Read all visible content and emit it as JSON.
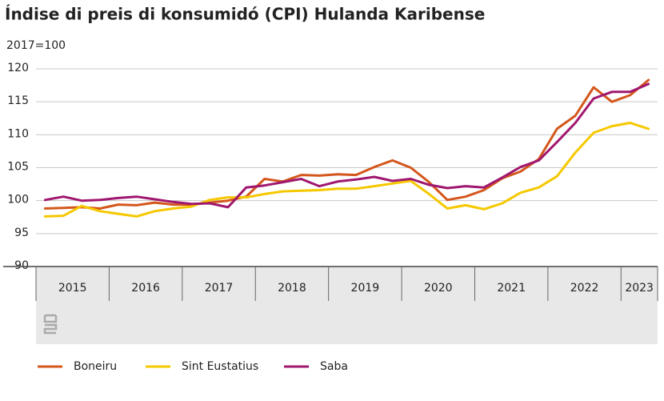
{
  "chart_data": {
    "type": "line",
    "title": "Índise di preis di konsumidó (CPI) Hulanda Karibense",
    "subtitle": "2017=100",
    "categories": [
      "2015",
      "2015",
      "2015",
      "2015",
      "2016",
      "2016",
      "2016",
      "2016",
      "2017",
      "2017",
      "2017",
      "2017",
      "2018",
      "2018",
      "2018",
      "2018",
      "2019",
      "2019",
      "2019",
      "2019",
      "2020",
      "2020",
      "2020",
      "2020",
      "2021",
      "2021",
      "2021",
      "2021",
      "2022",
      "2022",
      "2022",
      "2022",
      "2023",
      "2023"
    ],
    "series": [
      {
        "name": "Boneiru",
        "color": "#d4571c",
        "values": [
          98.8,
          98.9,
          99.0,
          98.8,
          99.4,
          99.3,
          99.7,
          99.4,
          99.4,
          99.7,
          100.0,
          100.6,
          103.3,
          102.9,
          103.9,
          103.8,
          104.0,
          103.9,
          105.1,
          106.1,
          105.0,
          102.8,
          100.1,
          100.6,
          101.6,
          103.4,
          104.4,
          106.3,
          110.9,
          112.9,
          117.2,
          115.0,
          116.0,
          118.3
        ]
      },
      {
        "name": "Sint Eustatius",
        "color": "#f5c800",
        "values": [
          97.6,
          97.7,
          99.2,
          98.4,
          98.0,
          97.6,
          98.4,
          98.8,
          99.1,
          100.1,
          100.5,
          100.5,
          101.0,
          101.4,
          101.5,
          101.6,
          101.8,
          101.8,
          102.2,
          102.6,
          103.0,
          101.0,
          98.8,
          99.3,
          98.7,
          99.6,
          101.2,
          102.0,
          103.7,
          107.3,
          110.3,
          111.3,
          111.8,
          110.9
        ]
      },
      {
        "name": "Saba",
        "color": "#a0176f",
        "values": [
          100.1,
          100.6,
          100.0,
          100.1,
          100.4,
          100.6,
          100.2,
          99.8,
          99.5,
          99.6,
          99.0,
          102.0,
          102.3,
          102.8,
          103.3,
          102.2,
          102.9,
          103.2,
          103.6,
          103.0,
          103.3,
          102.4,
          101.9,
          102.2,
          102.0,
          103.5,
          105.1,
          106.1,
          108.9,
          111.8,
          115.5,
          116.5,
          116.5,
          117.7
        ]
      }
    ],
    "ylim": [
      90,
      120
    ],
    "yticks": [
      90,
      95,
      100,
      105,
      110,
      115,
      120
    ],
    "grid": true
  }
}
